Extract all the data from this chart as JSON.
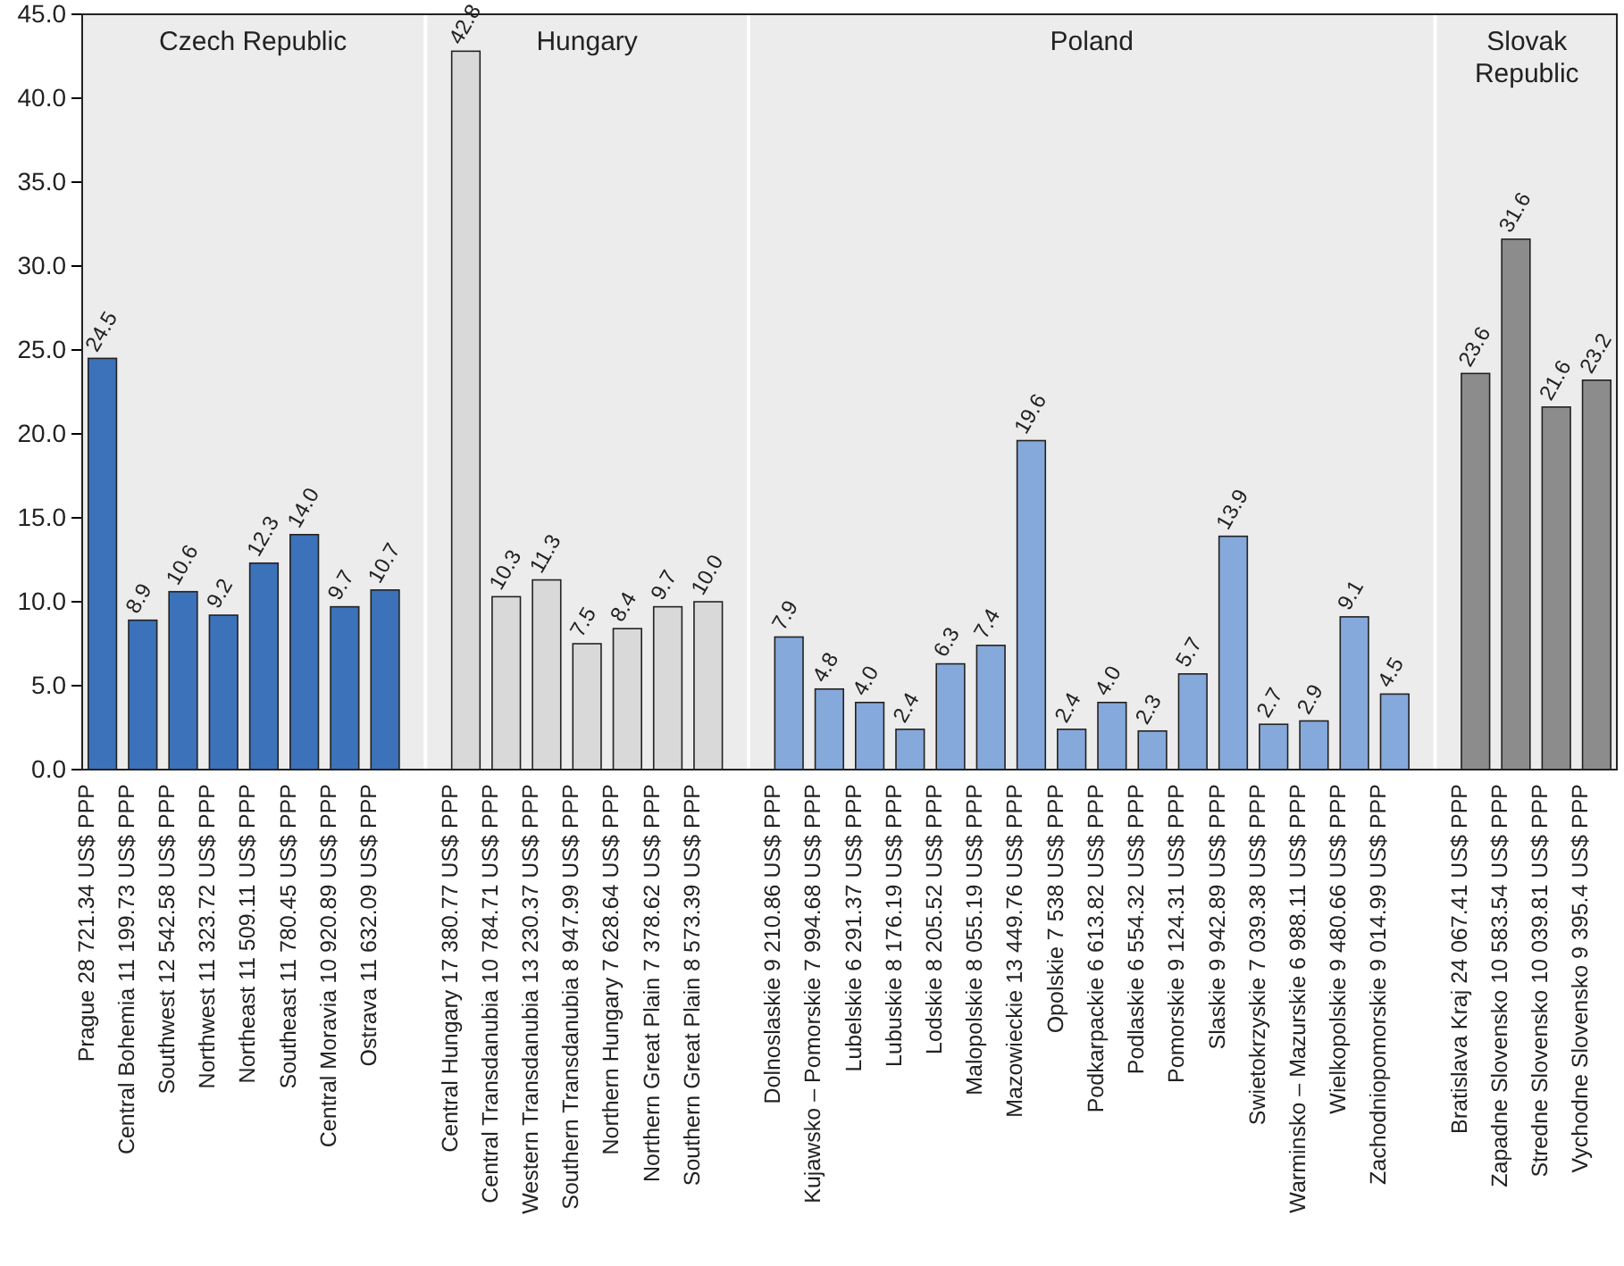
{
  "chart_data": {
    "type": "bar",
    "categories": [
      "Prague 28 721.34 US$ PPP",
      "Central Bohemia 11 199.73 US$ PPP",
      "Southwest 12 542.58 US$ PPP",
      "Northwest 11 323.72 US$ PPP",
      "Northeast 11 509.11 US$ PPP",
      "Southeast 11 780.45 US$ PPP",
      "Central Moravia 10 920.89 US$ PPP",
      "Ostrava 11 632.09 US$ PPP",
      null,
      "Central Hungary 17 380.77 US$ PPP",
      "Central Transdanubia 10 784.71 US$ PPP",
      "Western Transdanubia 13 230.37 US$ PPP",
      "Southern Transdanubia 8 947.99 US$ PPP",
      "Northern Hungary 7 628.64 US$ PPP",
      "Northern Great Plain 7 378.62 US$ PPP",
      "Southern Great Plain 8 573.39 US$ PPP",
      null,
      "Dolnoslaskie 9 210.86 US$ PPP",
      "Kujawsko – Pomorskie 7 994.68 US$ PPP",
      "Lubelskie 6 291.37 US$ PPP",
      "Lubuskie 8 176.19 US$ PPP",
      "Lodskie 8 205.52 US$ PPP",
      "Malopolskie 8 055.19 US$ PPP",
      "Mazowieckie 13 449.76 US$ PPP",
      "Opolskie 7 538 US$ PPP",
      "Podkarpackie 6 613.82 US$ PPP",
      "Podlaskie 6 554.32 US$ PPP",
      "Pomorskie 9 124.31 US$ PPP",
      "Slaskie 9 942.89 US$ PPP",
      "Swietokrzyskie 7 039.38 US$ PPP",
      "Warminsko – Mazurskie 6 988.11 US$ PPP",
      "Wielkopolskie 9 480.66 US$ PPP",
      "Zachodniopomorskie 9 014.99 US$ PPP",
      null,
      "Bratislava Kraj 24 067.41 US$ PPP",
      "Zapadne Slovensko 10 583.54 US$ PPP",
      "Stredne Slovensko 10 039.81 US$ PPP",
      "Vychodne Slovensko 9 395.4 US$ PPP"
    ],
    "series": [
      {
        "color": "#3b72b9",
        "values": [
          24.5,
          8.9,
          10.6,
          9.2,
          12.3,
          14.0,
          9.7,
          10.7,
          null,
          null,
          null,
          null,
          null,
          null,
          null,
          null,
          null,
          null,
          null,
          null,
          null,
          null,
          null,
          null,
          null,
          null,
          null,
          null,
          null,
          null,
          null,
          null,
          null,
          null,
          null,
          null,
          null,
          null
        ],
        "value_labels": [
          "24.5",
          "8.9",
          "10.6",
          "9.2",
          "12.3",
          "14.0",
          "9.7",
          "10.7",
          null,
          null,
          null,
          null,
          null,
          null,
          null,
          null,
          null,
          null,
          null,
          null,
          null,
          null,
          null,
          null,
          null,
          null,
          null,
          null,
          null,
          null,
          null,
          null,
          null,
          null,
          null,
          null,
          null,
          null
        ]
      },
      {
        "color": "#d9d9d9",
        "values": [
          null,
          null,
          null,
          null,
          null,
          null,
          null,
          null,
          null,
          42.8,
          10.3,
          11.3,
          7.5,
          8.4,
          9.7,
          10.0,
          null,
          null,
          null,
          null,
          null,
          null,
          null,
          null,
          null,
          null,
          null,
          null,
          null,
          null,
          null,
          null,
          null,
          null,
          null,
          null,
          null,
          null
        ],
        "value_labels": [
          null,
          null,
          null,
          null,
          null,
          null,
          null,
          null,
          null,
          "42.8",
          "10.3",
          "11.3",
          "7.5",
          "8.4",
          "9.7",
          "10.0",
          null,
          null,
          null,
          null,
          null,
          null,
          null,
          null,
          null,
          null,
          null,
          null,
          null,
          null,
          null,
          null,
          null,
          null,
          null,
          null,
          null,
          null
        ]
      },
      {
        "color": "#86a9dc",
        "values": [
          null,
          null,
          null,
          null,
          null,
          null,
          null,
          null,
          null,
          null,
          null,
          null,
          null,
          null,
          null,
          null,
          null,
          7.9,
          4.8,
          4.0,
          2.4,
          6.3,
          7.4,
          19.6,
          2.4,
          4.0,
          2.3,
          5.7,
          13.9,
          2.7,
          2.9,
          9.1,
          4.5,
          null,
          null,
          null,
          null,
          null
        ],
        "value_labels": [
          null,
          null,
          null,
          null,
          null,
          null,
          null,
          null,
          null,
          null,
          null,
          null,
          null,
          null,
          null,
          null,
          null,
          "7.9",
          "4.8",
          "4.0",
          "2.4",
          "6.3",
          "7.4",
          "19.6",
          "2.4",
          "4.0",
          "2.3",
          "5.7",
          "13.9",
          "2.7",
          "2.9",
          "9.1",
          "4.5",
          null,
          null,
          null,
          null,
          null
        ]
      },
      {
        "color": "#8c8c8c",
        "values": [
          null,
          null,
          null,
          null,
          null,
          null,
          null,
          null,
          null,
          null,
          null,
          null,
          null,
          null,
          null,
          null,
          null,
          null,
          null,
          null,
          null,
          null,
          null,
          null,
          null,
          null,
          null,
          null,
          null,
          null,
          null,
          null,
          null,
          null,
          23.6,
          31.6,
          21.6,
          23.2
        ],
        "value_labels": [
          null,
          null,
          null,
          null,
          null,
          null,
          null,
          null,
          null,
          null,
          null,
          null,
          null,
          null,
          null,
          null,
          null,
          null,
          null,
          null,
          null,
          null,
          null,
          null,
          null,
          null,
          null,
          null,
          null,
          null,
          null,
          null,
          null,
          null,
          "23.6",
          "31.6",
          "21.6",
          "23.2"
        ]
      }
    ],
    "annotations": [
      "Czech Republic",
      "Hungary",
      "Poland",
      "Slovak Republic"
    ],
    "ylim": [
      0,
      45
    ],
    "yticks": [
      {
        "value": 0,
        "label": "0.0"
      },
      {
        "value": 5,
        "label": "5.0"
      },
      {
        "value": 10,
        "label": "10.0"
      },
      {
        "value": 15,
        "label": "15.0"
      },
      {
        "value": 20,
        "label": "20.0"
      },
      {
        "value": 25,
        "label": "25.0"
      },
      {
        "value": 30,
        "label": "30.0"
      },
      {
        "value": 35,
        "label": "35.0"
      },
      {
        "value": 40,
        "label": "40.0"
      },
      {
        "value": 45,
        "label": "45.0"
      }
    ]
  }
}
